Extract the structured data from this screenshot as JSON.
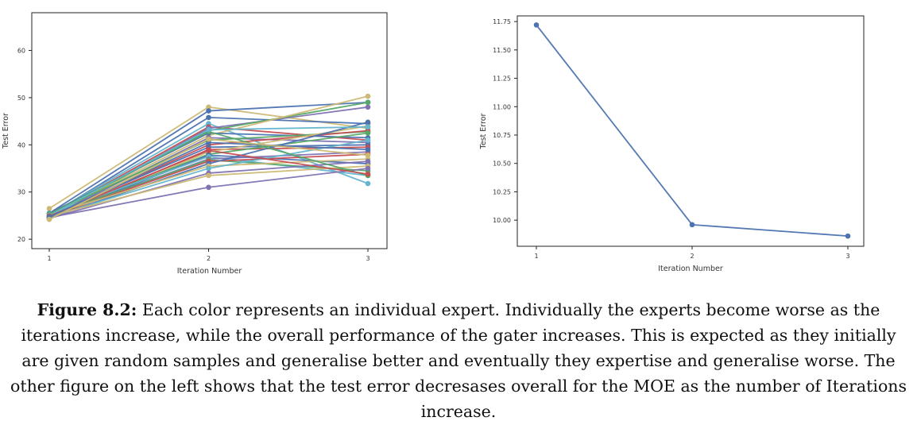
{
  "chart_data": [
    {
      "type": "line",
      "title": "",
      "xlabel": "Iteration Number",
      "ylabel": "Test Error",
      "x": [
        1,
        2,
        3
      ],
      "xticks": [
        "1",
        "2",
        "3"
      ],
      "yticks": [
        "20",
        "30",
        "40",
        "50",
        "60"
      ],
      "ylim": [
        18,
        68
      ],
      "grid": false,
      "legend": "none",
      "series": [
        {
          "color": "#ccb974",
          "values": [
            26.5,
            48.0,
            43.5
          ]
        },
        {
          "color": "#4c72b0",
          "values": [
            25.5,
            47.2,
            49.0
          ]
        },
        {
          "color": "#4c72b0",
          "values": [
            25.0,
            45.8,
            44.5
          ]
        },
        {
          "color": "#64b5cd",
          "values": [
            25.2,
            44.5,
            31.8
          ]
        },
        {
          "color": "#c44e52",
          "values": [
            25.0,
            43.8,
            41.0
          ]
        },
        {
          "color": "#8172b2",
          "values": [
            24.5,
            43.5,
            48.0
          ]
        },
        {
          "color": "#55a868",
          "values": [
            24.8,
            43.0,
            49.0
          ]
        },
        {
          "color": "#ccb974",
          "values": [
            25.0,
            42.0,
            50.3
          ]
        },
        {
          "color": "#4c72b0",
          "values": [
            25.5,
            42.5,
            41.5
          ]
        },
        {
          "color": "#8172b2",
          "values": [
            24.7,
            41.5,
            40.5
          ]
        },
        {
          "color": "#55a868",
          "values": [
            25.3,
            41.0,
            42.8
          ]
        },
        {
          "color": "#c44e52",
          "values": [
            24.8,
            40.0,
            43.0
          ]
        },
        {
          "color": "#4c72b0",
          "values": [
            25.0,
            39.5,
            40.0
          ]
        },
        {
          "color": "#c44e52",
          "values": [
            24.5,
            39.0,
            39.5
          ]
        },
        {
          "color": "#ccb974",
          "values": [
            24.3,
            38.5,
            44.0
          ]
        },
        {
          "color": "#55a868",
          "values": [
            25.1,
            38.0,
            42.5
          ]
        },
        {
          "color": "#4c72b0",
          "values": [
            24.6,
            37.8,
            36.0
          ]
        },
        {
          "color": "#64b5cd",
          "values": [
            25.4,
            37.5,
            33.5
          ]
        },
        {
          "color": "#8172b2",
          "values": [
            24.9,
            37.0,
            38.5
          ]
        },
        {
          "color": "#55a868",
          "values": [
            25.0,
            36.8,
            34.5
          ]
        },
        {
          "color": "#c44e52",
          "values": [
            24.8,
            36.5,
            38.0
          ]
        },
        {
          "color": "#4c72b0",
          "values": [
            24.5,
            36.0,
            44.8
          ]
        },
        {
          "color": "#ccb974",
          "values": [
            25.2,
            35.5,
            37.0
          ]
        },
        {
          "color": "#64b5cd",
          "values": [
            24.7,
            35.0,
            41.0
          ]
        },
        {
          "color": "#8172b2",
          "values": [
            24.4,
            34.0,
            36.5
          ]
        },
        {
          "color": "#ccb974",
          "values": [
            24.9,
            33.5,
            35.5
          ]
        },
        {
          "color": "#8172b2",
          "values": [
            24.6,
            31.0,
            35.0
          ]
        },
        {
          "color": "#55a868",
          "values": [
            25.3,
            42.8,
            33.5
          ]
        },
        {
          "color": "#64b5cd",
          "values": [
            25.0,
            43.2,
            43.8
          ]
        },
        {
          "color": "#c44e52",
          "values": [
            24.9,
            38.8,
            33.8
          ]
        },
        {
          "color": "#4c72b0",
          "values": [
            24.7,
            40.5,
            39.0
          ]
        },
        {
          "color": "#ccb974",
          "values": [
            24.2,
            41.2,
            37.8
          ]
        }
      ]
    },
    {
      "type": "line",
      "title": "",
      "xlabel": "Iteration Number",
      "ylabel": "Test Error",
      "x": [
        1,
        2,
        3
      ],
      "xticks": [
        "1",
        "2",
        "3"
      ],
      "yticks": [
        "10.00",
        "10.25",
        "10.50",
        "10.75",
        "11.00",
        "11.25",
        "11.50",
        "11.75"
      ],
      "ylim": [
        9.77,
        11.8
      ],
      "grid": false,
      "legend": "none",
      "series": [
        {
          "color": "#4c72b0",
          "values": [
            11.72,
            9.96,
            9.86
          ]
        }
      ]
    }
  ],
  "caption": {
    "label": "Figure 8.2:",
    "text": " Each color represents an individual expert. Individually the experts become worse as the iterations increase, while the overall performance of the gater increases. This is expected as they initially are given random samples and generalise better and eventually they expertise and generalise worse. The other figure on the left shows that the test error decresases overall for the MOE as the number of Iterations increase."
  }
}
